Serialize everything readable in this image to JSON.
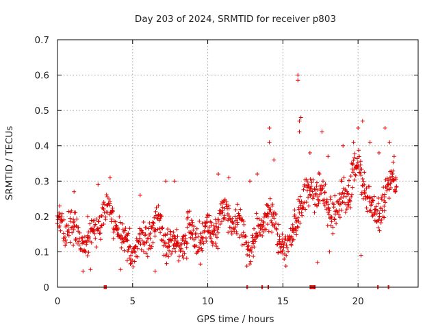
{
  "chart_data": {
    "type": "scatter",
    "title": "Day 203 of 2024, SRMTID for receiver p803",
    "xlabel": "GPS time / hours",
    "ylabel": "SRMTID / TECUs",
    "xlim": [
      0,
      24
    ],
    "ylim": [
      0,
      0.7
    ],
    "x_ticks": [
      0,
      5,
      10,
      15,
      20
    ],
    "x_tick_labels": [
      "0",
      "5",
      "10",
      "15",
      "20"
    ],
    "y_ticks": [
      0,
      0.1,
      0.2,
      0.3,
      0.4,
      0.5,
      0.6,
      0.7
    ],
    "y_tick_labels": [
      "0",
      "0.1",
      "0.2",
      "0.3",
      "0.4",
      "0.5",
      "0.6",
      "0.7"
    ],
    "grid": true,
    "marker": "+",
    "color": "#e00000",
    "series": [
      {
        "name": "SRMTID",
        "trend": [
          [
            0.0,
            0.17
          ],
          [
            1.0,
            0.14
          ],
          [
            2.0,
            0.16
          ],
          [
            3.0,
            0.19
          ],
          [
            4.0,
            0.16
          ],
          [
            5.0,
            0.13
          ],
          [
            6.0,
            0.12
          ],
          [
            7.0,
            0.18
          ],
          [
            8.0,
            0.13
          ],
          [
            9.0,
            0.11
          ],
          [
            10.0,
            0.18
          ],
          [
            11.0,
            0.2
          ],
          [
            12.0,
            0.16
          ],
          [
            13.0,
            0.15
          ],
          [
            14.0,
            0.2
          ],
          [
            14.5,
            0.13
          ],
          [
            15.5,
            0.14
          ],
          [
            16.0,
            0.25
          ],
          [
            16.5,
            0.23
          ],
          [
            17.5,
            0.25
          ],
          [
            18.5,
            0.24
          ],
          [
            19.5,
            0.27
          ],
          [
            20.0,
            0.31
          ],
          [
            21.0,
            0.24
          ],
          [
            22.0,
            0.27
          ],
          [
            22.6,
            0.27
          ]
        ],
        "spread": 0.045,
        "spikes": [
          [
            0.1,
            0.21
          ],
          [
            1.1,
            0.27
          ],
          [
            2.7,
            0.29
          ],
          [
            3.5,
            0.31
          ],
          [
            5.5,
            0.26
          ],
          [
            7.2,
            0.3
          ],
          [
            7.8,
            0.3
          ],
          [
            10.7,
            0.32
          ],
          [
            11.4,
            0.31
          ],
          [
            12.8,
            0.3
          ],
          [
            13.3,
            0.32
          ],
          [
            14.1,
            0.45
          ],
          [
            14.1,
            0.41
          ],
          [
            14.4,
            0.36
          ],
          [
            16.0,
            0.6
          ],
          [
            16.0,
            0.585
          ],
          [
            16.2,
            0.48
          ],
          [
            16.1,
            0.47
          ],
          [
            16.1,
            0.44
          ],
          [
            16.8,
            0.38
          ],
          [
            17.6,
            0.44
          ],
          [
            18.0,
            0.37
          ],
          [
            19.0,
            0.4
          ],
          [
            19.7,
            0.41
          ],
          [
            20.0,
            0.45
          ],
          [
            20.3,
            0.47
          ],
          [
            20.8,
            0.41
          ],
          [
            21.4,
            0.38
          ],
          [
            21.8,
            0.45
          ],
          [
            22.1,
            0.41
          ],
          [
            22.4,
            0.37
          ],
          [
            1.7,
            0.045
          ],
          [
            2.2,
            0.05
          ],
          [
            4.2,
            0.05
          ],
          [
            6.5,
            0.045
          ],
          [
            12.6,
            0.06
          ],
          [
            15.2,
            0.06
          ],
          [
            17.3,
            0.07
          ],
          [
            18.1,
            0.1
          ],
          [
            20.2,
            0.09
          ]
        ],
        "zeros": [
          3.1,
          3.2,
          12.6,
          13.6,
          14.0,
          16.8,
          16.9,
          17.0,
          17.1,
          21.3,
          22.0
        ]
      }
    ]
  }
}
